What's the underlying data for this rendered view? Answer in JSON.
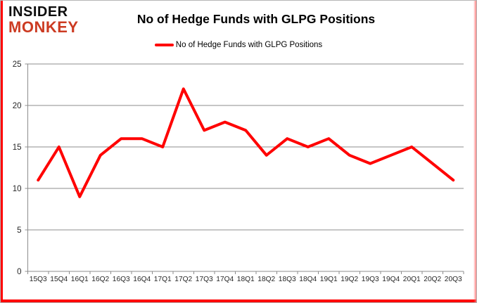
{
  "logo": {
    "line1": "INSIDER",
    "line2": "MONKEY"
  },
  "chart_data": {
    "type": "line",
    "title": "No of Hedge Funds with GLPG Positions",
    "categories": [
      "15Q3",
      "15Q4",
      "16Q1",
      "16Q2",
      "16Q3",
      "16Q4",
      "17Q1",
      "17Q2",
      "17Q3",
      "17Q4",
      "18Q1",
      "18Q2",
      "18Q3",
      "18Q4",
      "19Q1",
      "19Q2",
      "19Q3",
      "19Q4",
      "20Q1",
      "20Q2",
      "20Q3"
    ],
    "series": [
      {
        "name": "No of Hedge Funds with GLPG Positions",
        "values": [
          11,
          15,
          9,
          14,
          16,
          16,
          15,
          22,
          17,
          18,
          17,
          14,
          16,
          15,
          16,
          14,
          13,
          14,
          15,
          13,
          11
        ],
        "color": "#ff0000"
      }
    ],
    "xlabel": "",
    "ylabel": "",
    "ylim": [
      0,
      25
    ],
    "ytick_step": 5,
    "grid": true,
    "legend_position": "top-center"
  },
  "colors": {
    "line": "#ff0000",
    "grid": "#8c8c8c",
    "axis": "#8c8c8c",
    "tick_label": "#262626",
    "logo_red": "#cc3b22",
    "frame_red": "#ff0000"
  }
}
